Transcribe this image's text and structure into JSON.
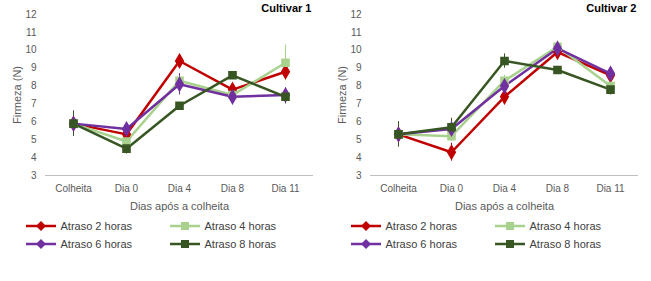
{
  "chart_data": [
    {
      "type": "line",
      "title": "Cultivar 1",
      "x_label": "Dias após a colheita",
      "y_label": "Firmeza (N)",
      "categories": [
        "Colheita",
        "Dia 0",
        "Dia 4",
        "Dia 8",
        "Dia 11"
      ],
      "ylim": [
        3,
        12
      ],
      "yticks": [
        3,
        4,
        5,
        6,
        7,
        8,
        9,
        10,
        11,
        12
      ],
      "grid": false,
      "legend": "bottom",
      "series": [
        {
          "name": "Atraso 2 horas",
          "color": "#c00000",
          "marker": "diamond",
          "values": [
            5.9,
            5.3,
            9.4,
            7.8,
            8.8
          ],
          "errors": [
            0.7,
            0.2,
            0.1,
            0.2,
            0.4
          ]
        },
        {
          "name": "Atraso 4 horas",
          "color": "#a9d18e",
          "marker": "square",
          "values": [
            5.9,
            4.9,
            8.3,
            7.5,
            9.3
          ],
          "errors": [
            0.7,
            0.3,
            0.3,
            0.2,
            1.0
          ]
        },
        {
          "name": "Atraso 6 horas",
          "color": "#7030a0",
          "marker": "diamond",
          "values": [
            5.9,
            5.6,
            8.1,
            7.4,
            7.5
          ],
          "errors": [
            0.7,
            0.3,
            0.6,
            0.2,
            0.4
          ]
        },
        {
          "name": "Atraso 8 horas",
          "color": "#375623",
          "marker": "square",
          "values": [
            5.9,
            4.5,
            6.9,
            8.6,
            7.4
          ],
          "errors": [
            0.7,
            0.3,
            0.1,
            0.2,
            0.4
          ]
        }
      ]
    },
    {
      "type": "line",
      "title": "Cultivar 2",
      "x_label": "Dias após a colheita",
      "y_label": "Firmeza (N)",
      "categories": [
        "Colheita",
        "Dia 0",
        "Dia 4",
        "Dia 8",
        "Dia 11"
      ],
      "ylim": [
        3,
        12
      ],
      "yticks": [
        3,
        4,
        5,
        6,
        7,
        8,
        9,
        10,
        11,
        12
      ],
      "grid": false,
      "legend": "bottom",
      "series": [
        {
          "name": "Atraso 2 horas",
          "color": "#c00000",
          "marker": "diamond",
          "values": [
            5.3,
            4.3,
            7.4,
            9.9,
            8.6
          ],
          "errors": [
            0.7,
            0.5,
            0.3,
            0.3,
            0.3
          ]
        },
        {
          "name": "Atraso 4 horas",
          "color": "#a9d18e",
          "marker": "square",
          "values": [
            5.3,
            5.2,
            8.3,
            10.2,
            8.0
          ],
          "errors": [
            0.7,
            0.3,
            0.3,
            0.3,
            0.3
          ]
        },
        {
          "name": "Atraso 6 horas",
          "color": "#7030a0",
          "marker": "diamond",
          "values": [
            5.3,
            5.6,
            8.0,
            10.1,
            8.7
          ],
          "errors": [
            0.7,
            0.4,
            0.3,
            0.4,
            0.4
          ]
        },
        {
          "name": "Atraso 8 horas",
          "color": "#375623",
          "marker": "square",
          "values": [
            5.3,
            5.7,
            9.4,
            8.9,
            7.8
          ],
          "errors": [
            0.7,
            0.5,
            0.4,
            0.2,
            0.3
          ]
        }
      ]
    }
  ]
}
